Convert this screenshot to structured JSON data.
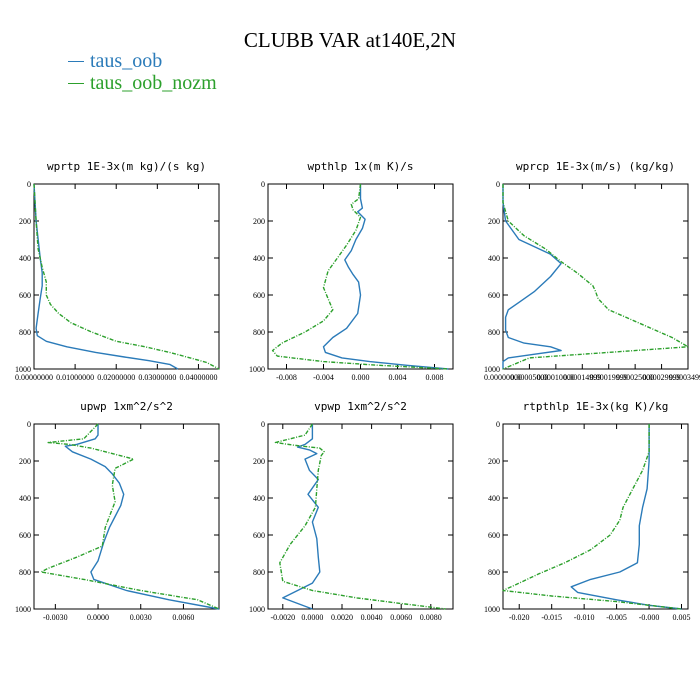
{
  "figure": {
    "title": "CLUBB VAR at140E,2N",
    "colors": {
      "taus_oob": "#2b7bb9",
      "taus_oob_nozm": "#2ca02c"
    }
  },
  "legend": [
    {
      "name": "taus_oob",
      "color": "#2b7bb9"
    },
    {
      "name": "taus_oob_nozm",
      "color": "#2ca02c"
    }
  ],
  "chart_data": [
    {
      "type": "line",
      "title": "wprtp  1E-3x(m kg)/(s kg)",
      "xlim": [
        0,
        0.045
      ],
      "ylim": [
        1000,
        0
      ],
      "xticks": [
        0,
        0.01,
        0.02,
        0.03,
        0.04
      ],
      "xtick_labels": [
        "0.00000000",
        "0.01000000",
        "0.02000000",
        "0.03000000",
        "0.04000000"
      ],
      "yticks": [
        0,
        200,
        400,
        600,
        800,
        1000
      ],
      "series": [
        {
          "name": "taus_oob",
          "style": "solid",
          "color": "#2b7bb9",
          "x": [
            0.0,
            0.0005,
            0.0015,
            0.002,
            0.002,
            0.0015,
            0.001,
            0.0005,
            0.0008,
            0.003,
            0.008,
            0.015,
            0.022,
            0.028,
            0.033,
            0.035
          ],
          "y": [
            0,
            200,
            400,
            480,
            550,
            620,
            700,
            780,
            820,
            850,
            880,
            910,
            935,
            955,
            975,
            1000
          ]
        },
        {
          "name": "taus_oob_nozm",
          "style": "dashed",
          "color": "#2ca02c",
          "x": [
            0.0,
            0.0005,
            0.001,
            0.002,
            0.003,
            0.003,
            0.004,
            0.006,
            0.009,
            0.014,
            0.02,
            0.027,
            0.033,
            0.038,
            0.042,
            0.045
          ],
          "y": [
            0,
            200,
            350,
            450,
            530,
            600,
            650,
            700,
            750,
            800,
            850,
            880,
            910,
            940,
            965,
            1000
          ]
        }
      ]
    },
    {
      "type": "line",
      "title": "wpthlp  1x(m K)/s",
      "xlim": [
        -0.01,
        0.01
      ],
      "ylim": [
        1000,
        0
      ],
      "xticks": [
        -0.008,
        -0.004,
        0,
        0.004,
        0.008
      ],
      "xtick_labels": [
        "-0.008",
        "-0.004",
        "0.000",
        "0.004",
        "0.008"
      ],
      "yticks": [
        0,
        200,
        400,
        600,
        800,
        1000
      ],
      "series": [
        {
          "name": "taus_oob",
          "style": "solid",
          "color": "#2b7bb9",
          "x": [
            0.0,
            0.0,
            0.0002,
            -0.0003,
            0.0005,
            0.0002,
            -0.0005,
            -0.001,
            -0.0017,
            -0.0013,
            -0.0008,
            -0.0002,
            0.0,
            -0.0003,
            -0.0015,
            -0.003,
            -0.004,
            -0.0038,
            -0.002,
            0.001,
            0.005,
            0.0095
          ],
          "y": [
            0,
            80,
            130,
            150,
            190,
            240,
            300,
            360,
            410,
            450,
            490,
            530,
            600,
            700,
            780,
            830,
            880,
            910,
            940,
            960,
            980,
            1000
          ]
        },
        {
          "name": "taus_oob_nozm",
          "style": "dashed",
          "color": "#2ca02c",
          "x": [
            0.0,
            -0.0002,
            -0.001,
            -0.0008,
            0.0,
            -0.0005,
            -0.0015,
            -0.0025,
            -0.0035,
            -0.004,
            -0.0035,
            -0.003,
            -0.004,
            -0.006,
            -0.0085,
            -0.0095,
            -0.009,
            -0.004,
            0.002,
            0.0095
          ],
          "y": [
            0,
            80,
            110,
            140,
            180,
            250,
            330,
            400,
            470,
            560,
            620,
            680,
            740,
            800,
            860,
            900,
            930,
            960,
            980,
            1000
          ]
        }
      ]
    },
    {
      "type": "line",
      "title": "wprcp  1E-3x(m/s) (kg/kg)",
      "xlim": [
        0,
        0.00035
      ],
      "ylim": [
        1000,
        0
      ],
      "xticks": [
        0,
        5e-05,
        0.0001,
        0.00015,
        0.0002,
        0.00025,
        0.0003,
        0.00035
      ],
      "xtick_labels": [
        "0.00000000",
        "0.00005000",
        "0.00010000",
        "0.00014999",
        "0.00019999",
        "0.00025000",
        "0.00029999",
        "0.00034999"
      ],
      "yticks": [
        0,
        200,
        400,
        600,
        800,
        1000
      ],
      "series": [
        {
          "name": "taus_oob",
          "style": "solid",
          "color": "#2b7bb9",
          "x": [
            0.0,
            0.0,
            5e-06,
            3e-05,
            9e-05,
            0.00011,
            9e-05,
            6e-05,
            3e-05,
            1e-05,
            5e-06,
            5e-06,
            1e-05,
            4e-05,
            9e-05,
            0.00011,
            6e-05,
            1e-05,
            0.0,
            0.0
          ],
          "y": [
            0,
            100,
            200,
            300,
            380,
            430,
            500,
            580,
            640,
            680,
            720,
            790,
            830,
            860,
            880,
            900,
            920,
            940,
            960,
            1000
          ]
        },
        {
          "name": "taus_oob_nozm",
          "style": "dashed",
          "color": "#2ca02c",
          "x": [
            0.0,
            0.0,
            1e-05,
            4e-05,
            8e-05,
            0.00011,
            0.00014,
            0.00017,
            0.000175,
            0.00018,
            0.0002,
            0.00024,
            0.00028,
            0.00032,
            0.00035,
            0.0002,
            5e-05,
            0.0
          ],
          "y": [
            0,
            100,
            200,
            280,
            350,
            420,
            480,
            550,
            580,
            620,
            680,
            730,
            780,
            830,
            880,
            910,
            940,
            1000
          ]
        }
      ]
    },
    {
      "type": "line",
      "title": "upwp  1xm^2/s^2",
      "xlim": [
        -0.0045,
        0.0085
      ],
      "ylim": [
        1000,
        0
      ],
      "xticks": [
        -0.003,
        0,
        0.003,
        0.006
      ],
      "xtick_labels": [
        "-0.0030",
        "0.0000",
        "0.0030",
        "0.0060"
      ],
      "yticks": [
        0,
        200,
        400,
        600,
        800,
        1000
      ],
      "series": [
        {
          "name": "taus_oob",
          "style": "solid",
          "color": "#2b7bb9",
          "x": [
            0.0,
            0.0,
            -0.0002,
            -0.0015,
            -0.0023,
            -0.0018,
            -0.0005,
            0.0005,
            0.001,
            0.0015,
            0.0018,
            0.0016,
            0.0012,
            0.0008,
            0.0004,
            0.0,
            -0.0005,
            -0.0003,
            0.002,
            0.005,
            0.0085
          ],
          "y": [
            0,
            60,
            80,
            110,
            120,
            150,
            190,
            230,
            270,
            320,
            380,
            440,
            500,
            560,
            640,
            740,
            800,
            840,
            900,
            950,
            1000
          ]
        },
        {
          "name": "taus_oob_nozm",
          "style": "dashed",
          "color": "#2ca02c",
          "x": [
            0.0,
            -0.001,
            -0.0035,
            -0.002,
            -0.0005,
            0.001,
            0.0025,
            0.0012,
            0.001,
            0.0012,
            0.0008,
            0.0005,
            0.0003,
            -0.0015,
            -0.0035,
            -0.004,
            -0.001,
            0.003,
            0.007,
            0.0085
          ],
          "y": [
            0,
            80,
            100,
            110,
            130,
            160,
            190,
            240,
            330,
            420,
            500,
            560,
            660,
            720,
            780,
            800,
            840,
            900,
            950,
            1000
          ]
        }
      ]
    },
    {
      "type": "line",
      "title": "vpwp  1xm^2/s^2",
      "xlim": [
        -0.003,
        0.0095
      ],
      "ylim": [
        1000,
        0
      ],
      "xticks": [
        -0.002,
        0,
        0.002,
        0.004,
        0.006,
        0.008
      ],
      "xtick_labels": [
        "-0.0020",
        "0.0000",
        "0.0020",
        "0.0040",
        "0.0060",
        "0.0080"
      ],
      "yticks": [
        0,
        200,
        400,
        600,
        800,
        1000
      ],
      "series": [
        {
          "name": "taus_oob",
          "style": "solid",
          "color": "#2b7bb9",
          "x": [
            0.0,
            0.0,
            -0.0005,
            -0.001,
            -0.0002,
            0.0003,
            -0.0005,
            -0.0002,
            0.0004,
            -0.0003,
            0.0004,
            0.0,
            0.0003,
            0.0004,
            0.0005,
            0.0,
            -0.002,
            0.0
          ],
          "y": [
            0,
            80,
            110,
            125,
            140,
            160,
            190,
            250,
            300,
            380,
            450,
            530,
            620,
            720,
            800,
            860,
            940,
            1000
          ]
        },
        {
          "name": "taus_oob_nozm",
          "style": "dashed",
          "color": "#2ca02c",
          "x": [
            0.0,
            -0.0005,
            -0.0025,
            -0.0012,
            0.0005,
            0.0008,
            0.0006,
            0.0004,
            0.0003,
            0.0002,
            -0.0005,
            -0.0015,
            -0.0022,
            -0.002,
            0.0,
            0.003,
            0.006,
            0.009
          ],
          "y": [
            0,
            60,
            100,
            115,
            130,
            150,
            170,
            250,
            350,
            450,
            550,
            650,
            750,
            850,
            900,
            940,
            970,
            1000
          ]
        }
      ]
    },
    {
      "type": "line",
      "title": "rtpthlp  1E-3x(kg K)/kg",
      "xlim": [
        -0.0225,
        0.006
      ],
      "ylim": [
        1000,
        0
      ],
      "xticks": [
        -0.02,
        -0.015,
        -0.01,
        -0.005,
        0,
        0.005
      ],
      "xtick_labels": [
        "-0.020",
        "-0.015",
        "-0.010",
        "-0.005",
        "-0.000",
        "0.005"
      ],
      "yticks": [
        0,
        200,
        400,
        600,
        800,
        1000
      ],
      "series": [
        {
          "name": "taus_oob",
          "style": "solid",
          "color": "#2b7bb9",
          "x": [
            0.0,
            0.0,
            -0.0003,
            -0.001,
            -0.0015,
            -0.0015,
            -0.0018,
            -0.0045,
            -0.009,
            -0.012,
            -0.011,
            -0.005,
            0.0,
            0.005
          ],
          "y": [
            0,
            200,
            350,
            450,
            550,
            650,
            750,
            800,
            840,
            880,
            910,
            950,
            980,
            1000
          ]
        },
        {
          "name": "taus_oob_nozm",
          "style": "dashed",
          "color": "#2ca02c",
          "x": [
            0.0,
            0.0,
            -0.001,
            -0.0025,
            -0.004,
            -0.0045,
            -0.006,
            -0.009,
            -0.013,
            -0.017,
            -0.02,
            -0.0225,
            -0.015,
            -0.005,
            0.005
          ],
          "y": [
            0,
            150,
            250,
            350,
            450,
            520,
            600,
            680,
            750,
            810,
            860,
            900,
            930,
            960,
            1000
          ]
        }
      ]
    }
  ]
}
